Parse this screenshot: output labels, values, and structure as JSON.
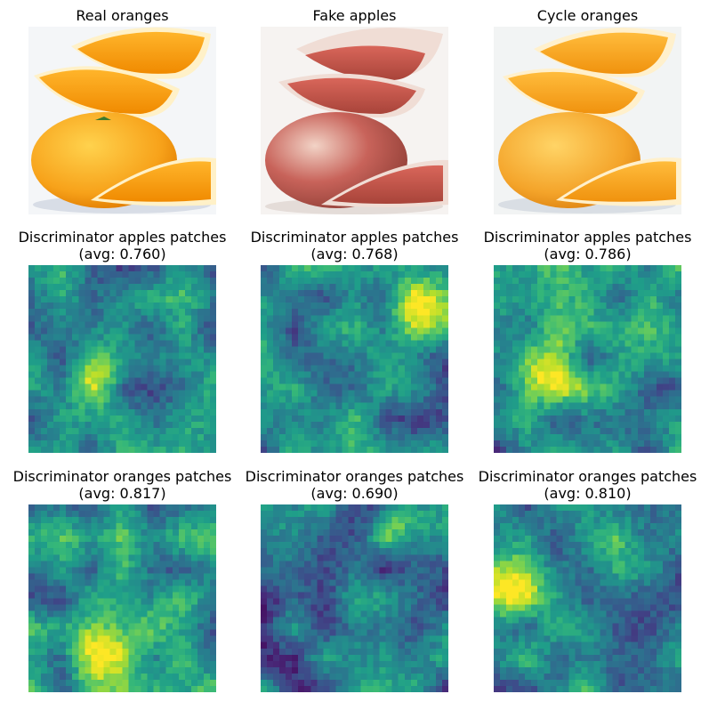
{
  "figure": {
    "row1": [
      {
        "title": "Real oranges",
        "kind": "real-oranges"
      },
      {
        "title": "Fake apples",
        "kind": "fake-apples"
      },
      {
        "title": "Cycle oranges",
        "kind": "cycle-oranges"
      }
    ],
    "row2": [
      {
        "title_line1": "Discriminator apples patches",
        "title_line2": "(avg: 0.760)",
        "avg": 0.76
      },
      {
        "title_line1": "Discriminator apples patches",
        "title_line2": "(avg: 0.768)",
        "avg": 0.768
      },
      {
        "title_line1": "Discriminator apples patches",
        "title_line2": "(avg: 0.786)",
        "avg": 0.786
      }
    ],
    "row3": [
      {
        "title_line1": "Discriminator oranges patches",
        "title_line2": "(avg: 0.817)",
        "avg": 0.817
      },
      {
        "title_line1": "Discriminator oranges patches",
        "title_line2": "(avg: 0.690)",
        "avg": 0.69
      },
      {
        "title_line1": "Discriminator oranges patches",
        "title_line2": "(avg: 0.810)",
        "avg": 0.81
      }
    ],
    "colormap": "viridis"
  }
}
